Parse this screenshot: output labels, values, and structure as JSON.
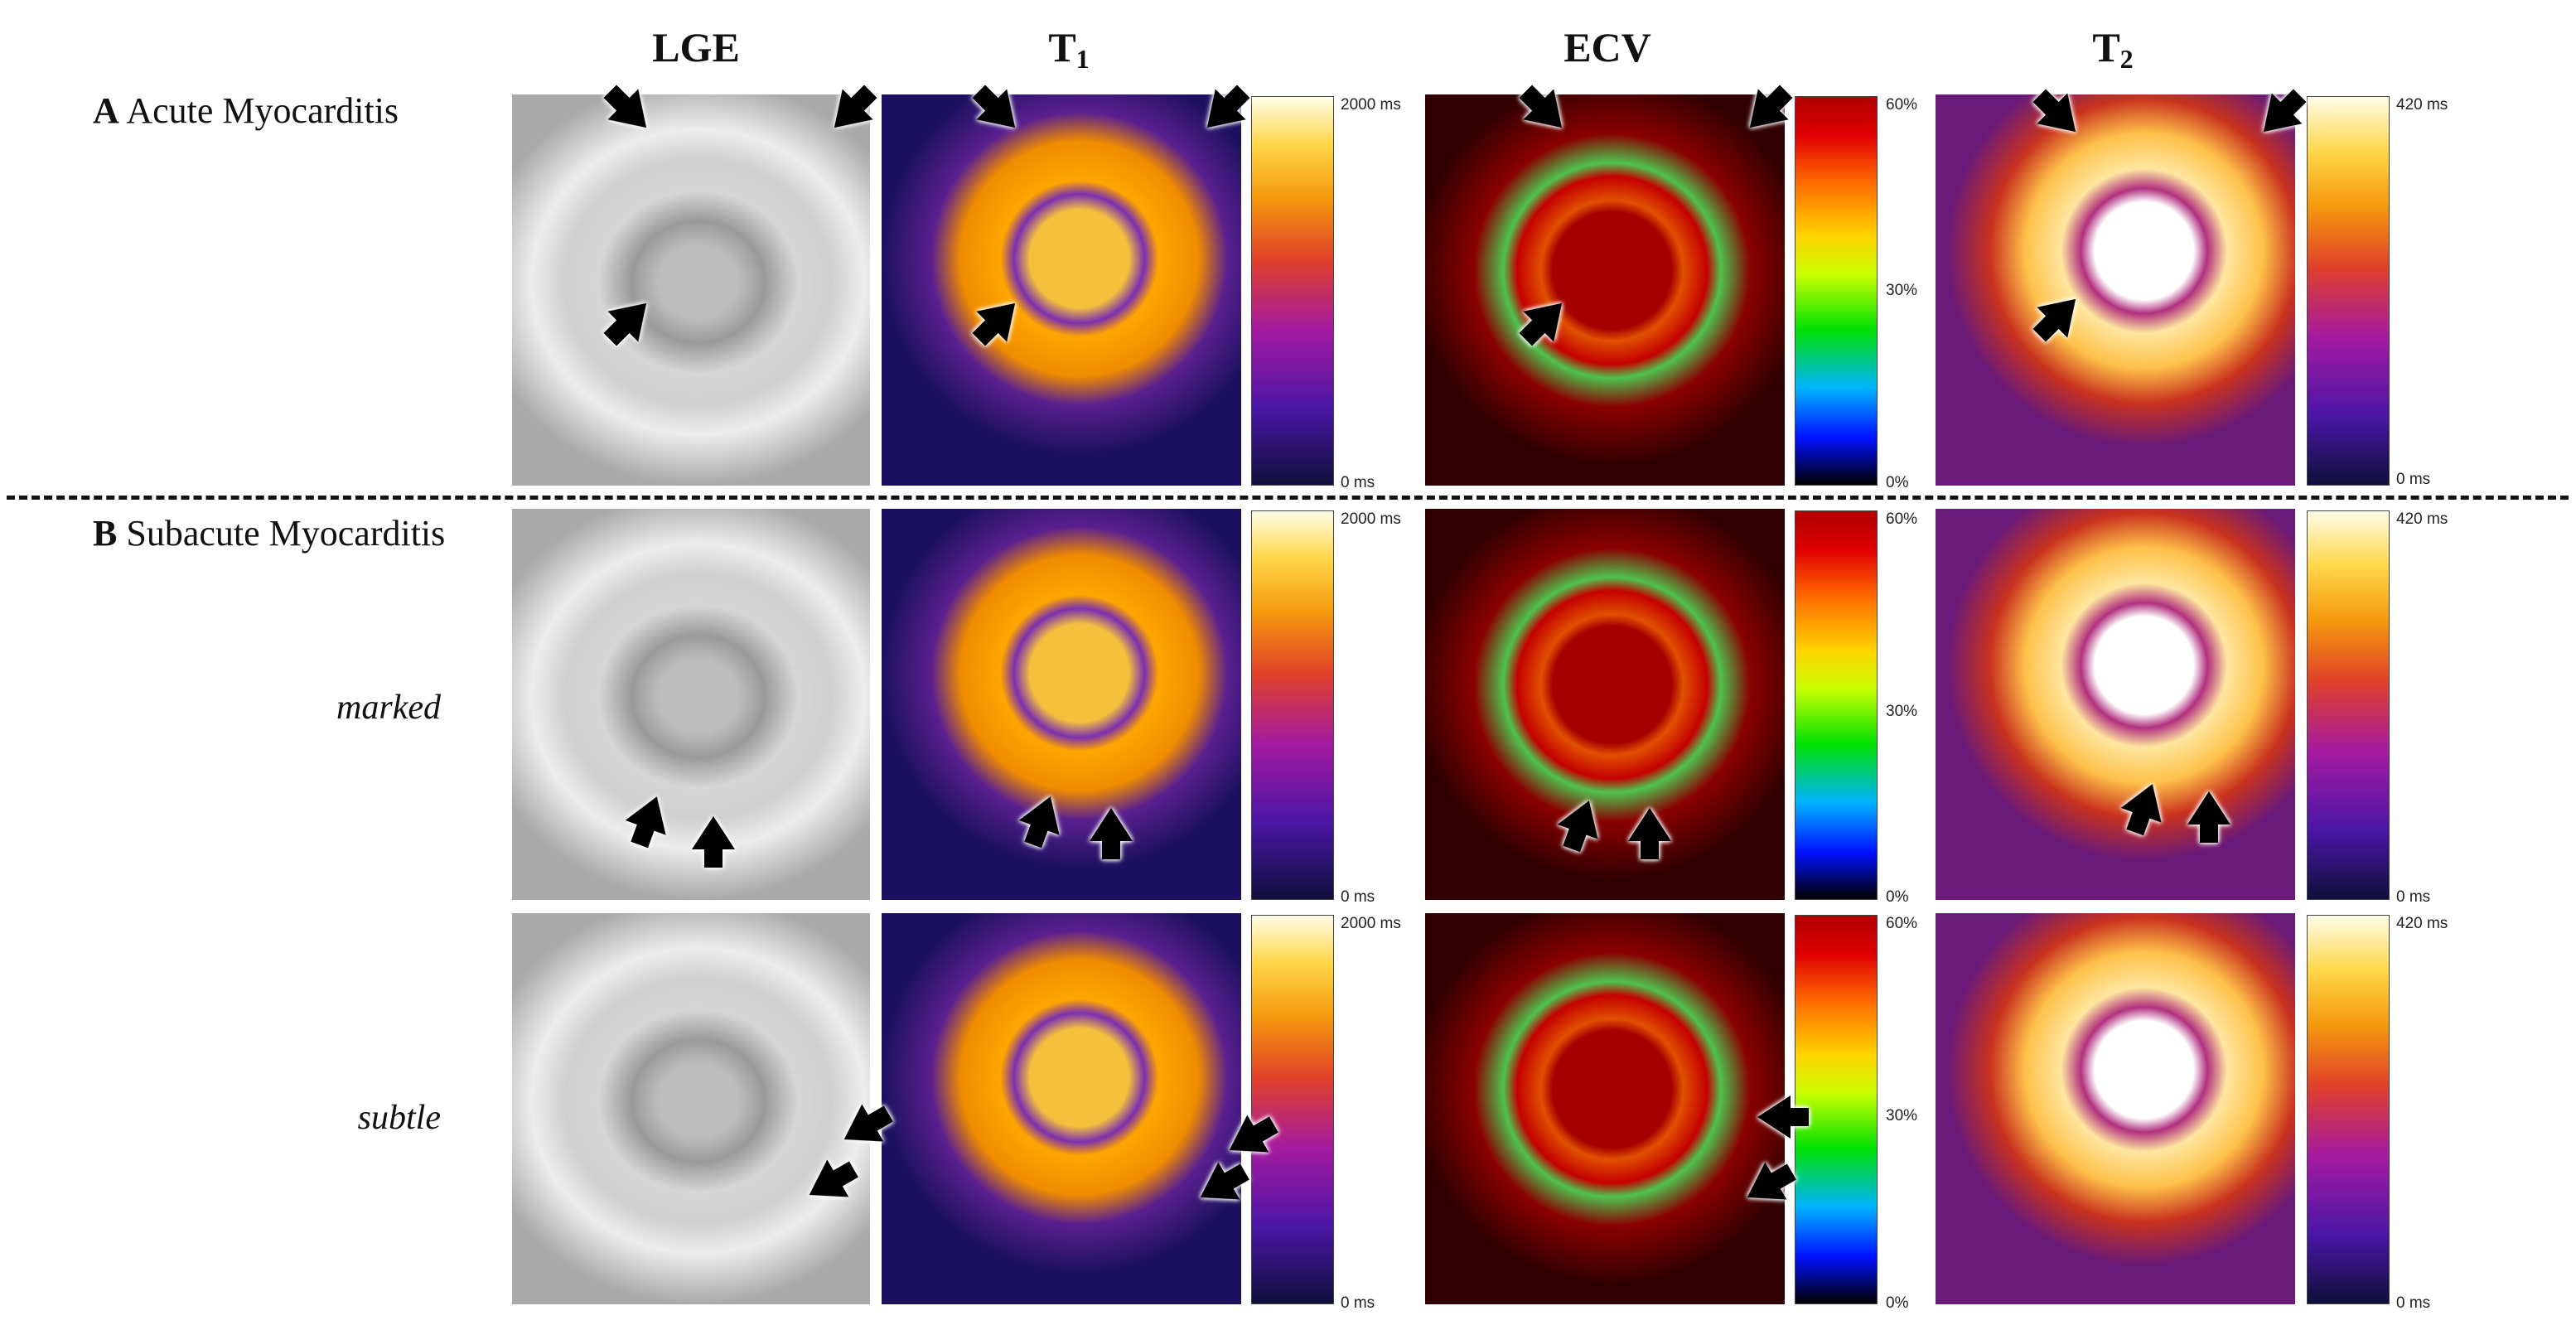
{
  "columns": {
    "lge": "LGE",
    "t1_base": "T",
    "t1_sub": "1",
    "ecv": "ECV",
    "t2_base": "T",
    "t2_sub": "2"
  },
  "rows": {
    "a_letter": "A",
    "a_text": "Acute Myocarditis",
    "b_letter": "B",
    "b_text": "Subacute Myocarditis",
    "marked": "marked",
    "subtle": "subtle"
  },
  "colorbars": {
    "t1_max": "2000 ms",
    "t1_min": "0 ms",
    "ecv_max": "60%",
    "ecv_mid": "30%",
    "ecv_min": "0%",
    "t2_max": "420 ms",
    "t2_min": "0 ms"
  },
  "icons": {
    "marker": "arrow-icon"
  }
}
